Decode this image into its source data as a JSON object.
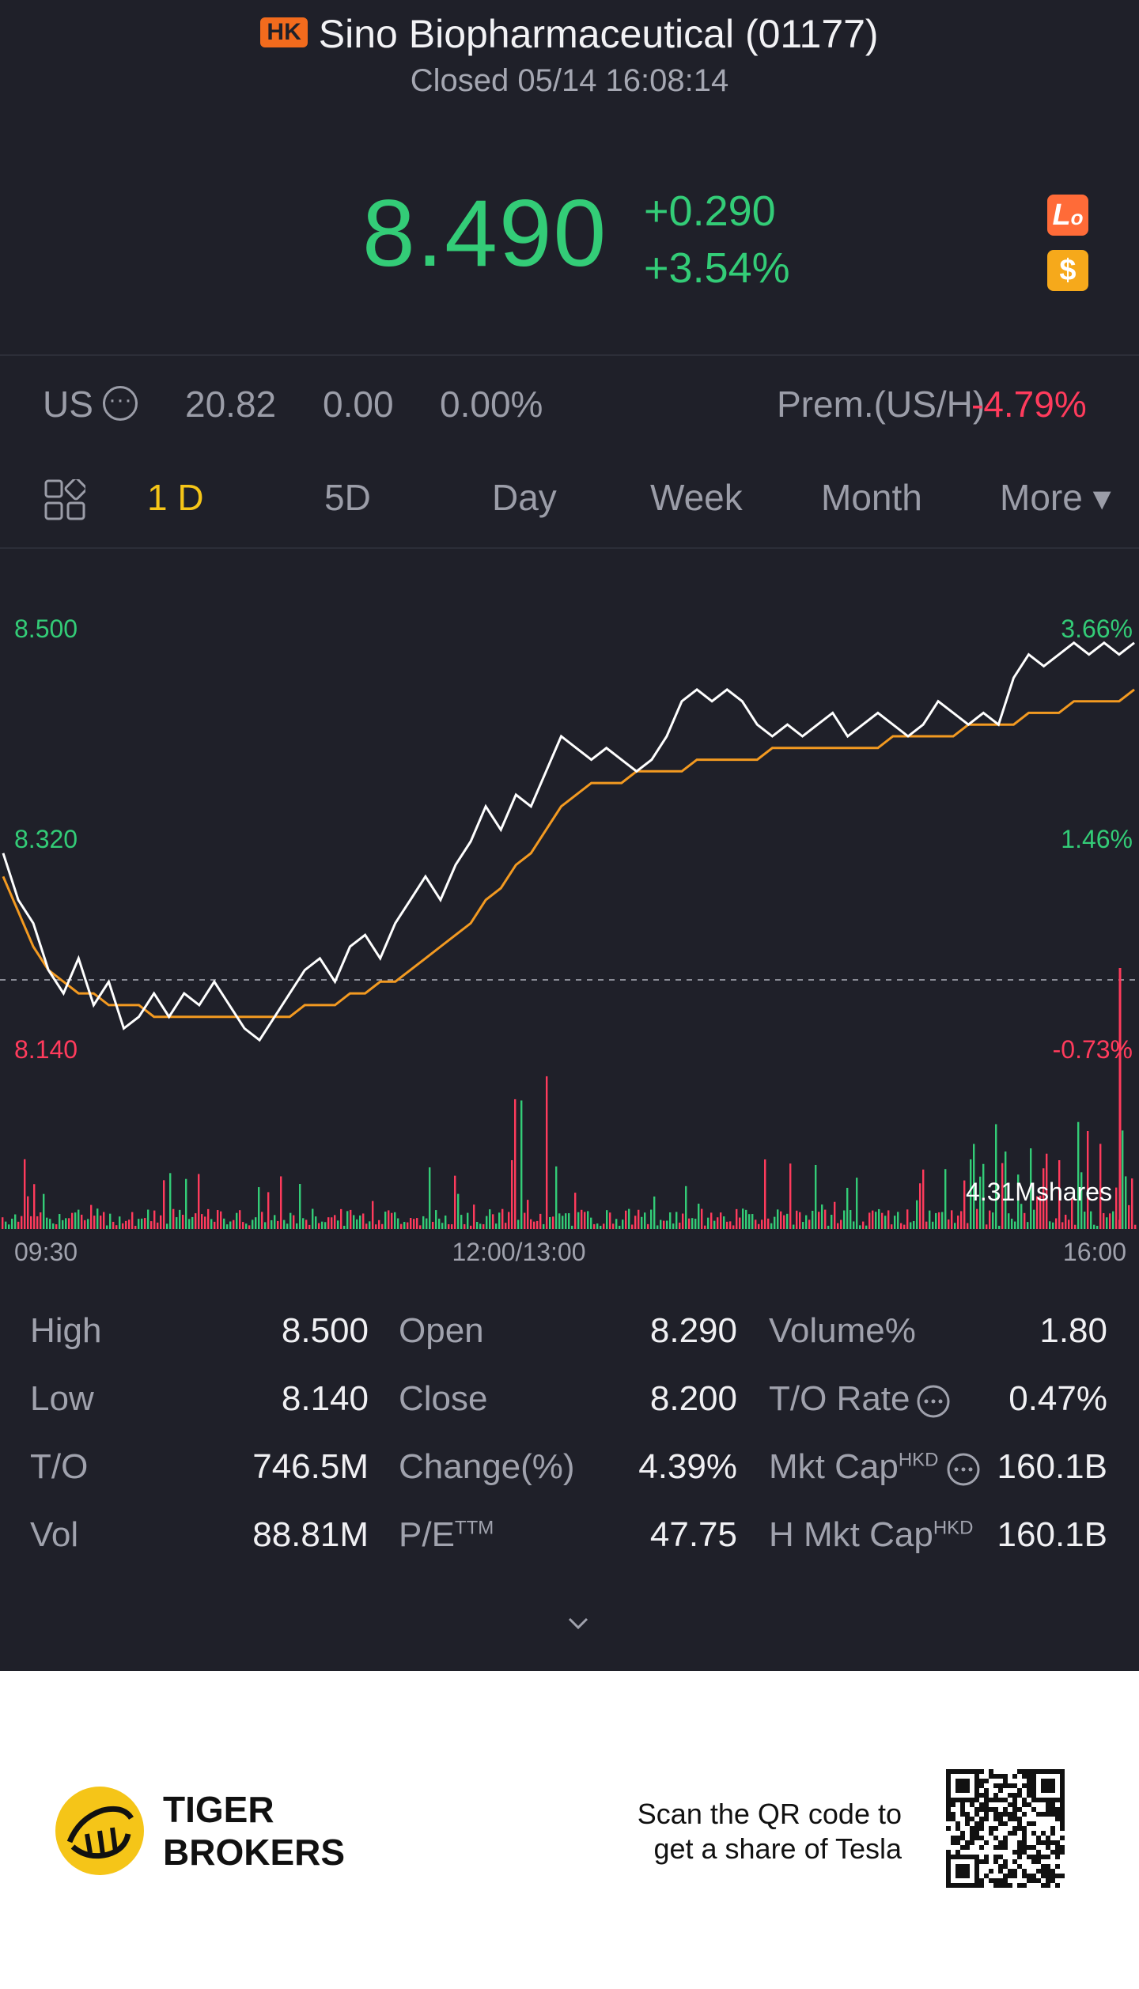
{
  "header": {
    "market_badge": "HK",
    "stock_name": "Sino Biopharmaceutical (01177)",
    "status": "Closed 05/14 16:08:14",
    "price": "8.490",
    "change": "+0.290",
    "change_pct": "+3.54%",
    "icons": [
      "lo-icon",
      "dollar-icon"
    ]
  },
  "us_row": {
    "label": "US",
    "price": "20.82",
    "change": "0.00",
    "change_pct": "0.00%",
    "prem_label": "Prem.(US/H)",
    "prem_value": "-4.79%"
  },
  "tabs": [
    {
      "label": "1 D",
      "active": true
    },
    {
      "label": "5D"
    },
    {
      "label": "Day"
    },
    {
      "label": "Week"
    },
    {
      "label": "Month"
    },
    {
      "label": "More ▾"
    }
  ],
  "chart_data": {
    "type": "line",
    "y_labels_left": [
      "8.500",
      "8.320",
      "8.140"
    ],
    "y_labels_right": [
      "3.66%",
      "1.46%",
      "-0.73%"
    ],
    "x_labels": [
      "09:30",
      "12:00/13:00",
      "16:00"
    ],
    "prev_close": 8.2,
    "ylim": [
      8.14,
      8.5
    ],
    "volume_label": "4.31Mshares",
    "price_series": [
      8.31,
      8.27,
      8.25,
      8.21,
      8.19,
      8.22,
      8.18,
      8.2,
      8.16,
      8.17,
      8.19,
      8.17,
      8.19,
      8.18,
      8.2,
      8.18,
      8.16,
      8.15,
      8.17,
      8.19,
      8.21,
      8.22,
      8.2,
      8.23,
      8.24,
      8.22,
      8.25,
      8.27,
      8.29,
      8.27,
      8.3,
      8.32,
      8.35,
      8.33,
      8.36,
      8.35,
      8.38,
      8.41,
      8.4,
      8.39,
      8.4,
      8.39,
      8.38,
      8.39,
      8.41,
      8.44,
      8.45,
      8.44,
      8.45,
      8.44,
      8.42,
      8.41,
      8.42,
      8.41,
      8.42,
      8.43,
      8.41,
      8.42,
      8.43,
      8.42,
      8.41,
      8.42,
      8.44,
      8.43,
      8.42,
      8.43,
      8.42,
      8.46,
      8.48,
      8.47,
      8.48,
      8.49,
      8.48,
      8.49,
      8.48,
      8.49
    ],
    "avg_series": [
      8.29,
      8.26,
      8.23,
      8.21,
      8.2,
      8.19,
      8.19,
      8.18,
      8.18,
      8.18,
      8.17,
      8.17,
      8.17,
      8.17,
      8.17,
      8.17,
      8.17,
      8.17,
      8.17,
      8.17,
      8.18,
      8.18,
      8.18,
      8.19,
      8.19,
      8.2,
      8.2,
      8.21,
      8.22,
      8.23,
      8.24,
      8.25,
      8.27,
      8.28,
      8.3,
      8.31,
      8.33,
      8.35,
      8.36,
      8.37,
      8.37,
      8.37,
      8.38,
      8.38,
      8.38,
      8.38,
      8.39,
      8.39,
      8.39,
      8.39,
      8.39,
      8.4,
      8.4,
      8.4,
      8.4,
      8.4,
      8.4,
      8.4,
      8.4,
      8.41,
      8.41,
      8.41,
      8.41,
      8.41,
      8.42,
      8.42,
      8.42,
      8.42,
      8.43,
      8.43,
      8.43,
      8.44,
      8.44,
      8.44,
      8.44,
      8.45
    ]
  },
  "stats": [
    [
      {
        "label": "High",
        "value": "8.500"
      },
      {
        "label": "Open",
        "value": "8.290"
      },
      {
        "label": "Volume%",
        "value": "1.80"
      }
    ],
    [
      {
        "label": "Low",
        "value": "8.140"
      },
      {
        "label": "Close",
        "value": "8.200"
      },
      {
        "label": "T/O Rate",
        "value": "0.47%"
      }
    ],
    [
      {
        "label": "T/O",
        "value": "746.5M"
      },
      {
        "label": "Change(%)",
        "value": "4.39%"
      },
      {
        "label": "Mkt Cap",
        "sup": "HKD",
        "value": "160.1B"
      }
    ],
    [
      {
        "label": "Vol",
        "value": "88.81M"
      },
      {
        "label": "P/E",
        "sup": "TTM",
        "value": "47.75"
      },
      {
        "label": "H Mkt Cap",
        "sup": "HKD",
        "value": "160.1B"
      }
    ]
  ],
  "footer": {
    "brand_line1": "TIGER",
    "brand_line2": "BROKERS",
    "scan_line1": "Scan the QR code to",
    "scan_line2": "get a share of Tesla"
  },
  "colors": {
    "up": "#33cc77",
    "down": "#ff3b5c",
    "avg_line": "#f39a21",
    "accent": "#f5c518"
  }
}
